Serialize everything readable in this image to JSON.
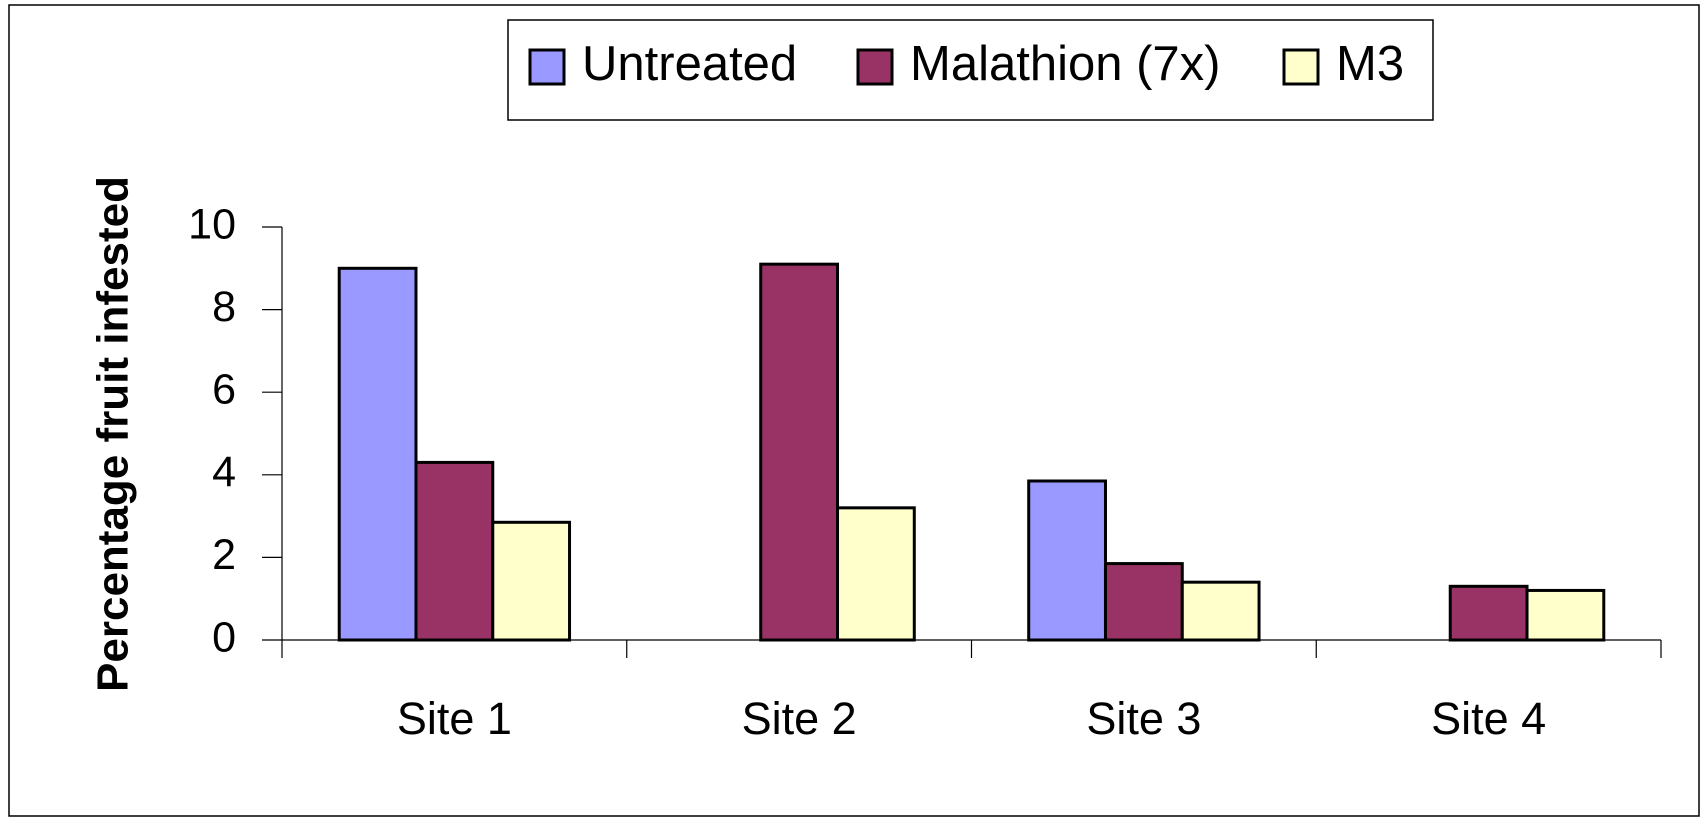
{
  "chart_data": {
    "type": "bar",
    "y_label": "Percentage fruit infested",
    "categories": [
      "Site 1",
      "Site 2",
      "Site 3",
      "Site 4"
    ],
    "series": [
      {
        "name": "Untreated",
        "color": "#9999ff",
        "values": [
          9,
          null,
          3.85,
          null
        ]
      },
      {
        "name": "Malathion (7x)",
        "color": "#993366",
        "values": [
          4.3,
          9.1,
          1.85,
          1.3
        ]
      },
      {
        "name": "M3",
        "color": "#ffffcc",
        "values": [
          2.85,
          3.2,
          1.4,
          1.2
        ]
      }
    ],
    "ylim": [
      0,
      10
    ],
    "yticks": [
      0,
      2,
      4,
      6,
      8,
      10
    ],
    "legend": "top"
  }
}
